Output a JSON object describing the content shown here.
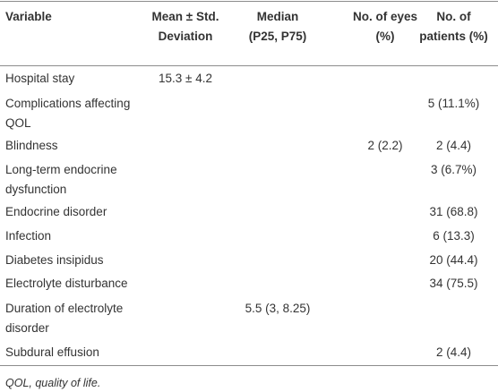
{
  "header": {
    "columns": [
      "Variable",
      "Mean ± Std. Deviation",
      "Median (P25, P75)",
      "No. of eyes (%)",
      "No. of patients (%)"
    ]
  },
  "table": {
    "rows": [
      [
        "Hospital stay",
        "15.3 ± 4.2",
        null,
        null,
        null
      ],
      [
        "Complications affecting QOL",
        null,
        null,
        null,
        "5 (11.1%)"
      ],
      [
        "Blindness",
        null,
        null,
        "2 (2.2)",
        "2 (4.4)"
      ],
      [
        "Long-term endocrine dysfunction",
        null,
        null,
        null,
        "3 (6.7%)"
      ],
      [
        "Endocrine disorder",
        null,
        null,
        null,
        "31 (68.8)"
      ],
      [
        "Infection",
        null,
        null,
        null,
        "6 (13.3)"
      ],
      [
        "Diabetes insipidus",
        null,
        null,
        null,
        "20 (44.4)"
      ],
      [
        "Electrolyte disturbance",
        null,
        null,
        null,
        "34 (75.5)"
      ],
      [
        "Duration of electrolyte disorder",
        null,
        "5.5 (3, 8.25)",
        null,
        null
      ],
      [
        "Subdural effusion",
        null,
        null,
        null,
        "2 (4.4)"
      ]
    ]
  },
  "footnote": "QOL, quality of life."
}
